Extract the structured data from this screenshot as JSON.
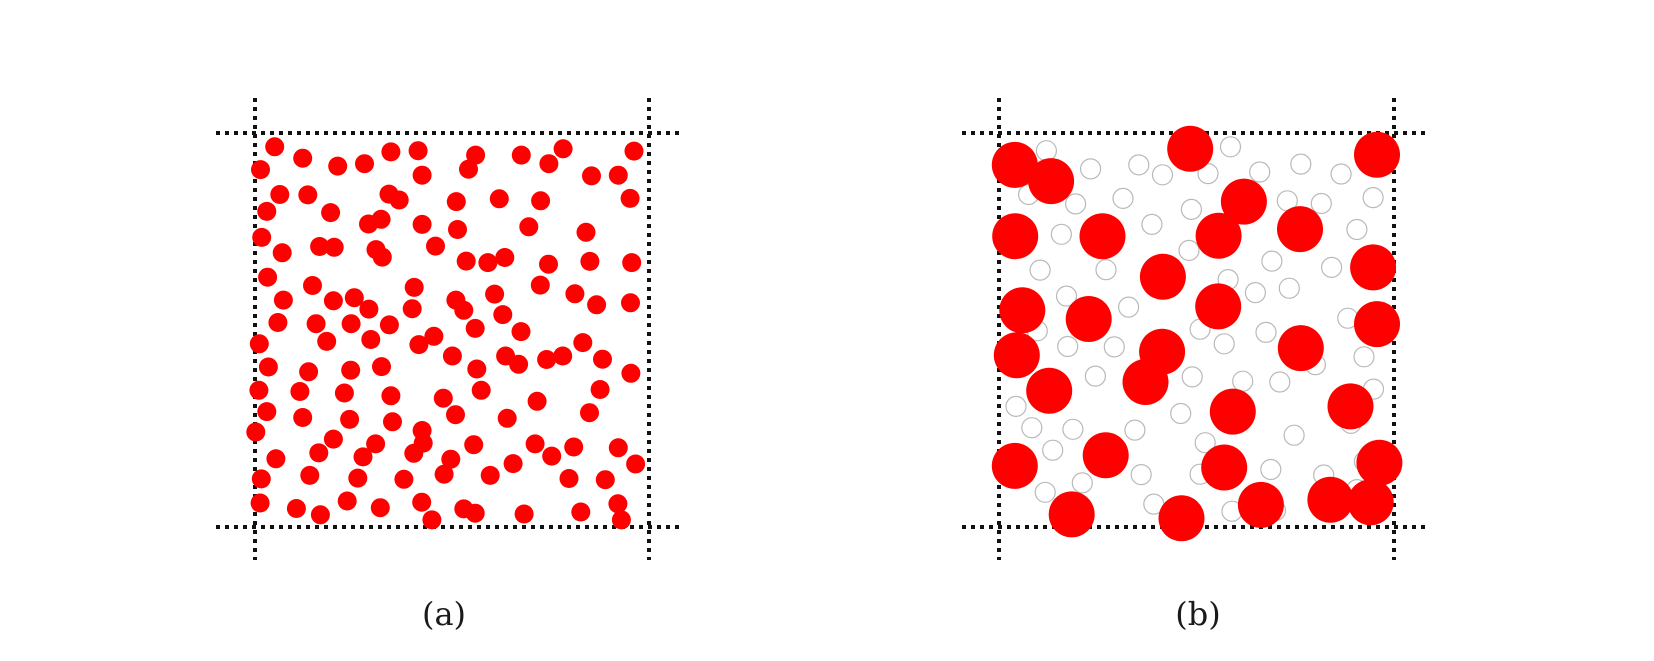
{
  "panels": [
    {
      "id": "a",
      "caption": "(a)",
      "particle_color": "#ff0000",
      "particles": [
        [
          0.05,
          0.035
        ],
        [
          0.121,
          0.064
        ],
        [
          0.345,
          0.048
        ],
        [
          0.414,
          0.045
        ],
        [
          0.56,
          0.056
        ],
        [
          0.676,
          0.056
        ],
        [
          0.782,
          0.04
        ],
        [
          0.962,
          0.046
        ],
        [
          0.014,
          0.093
        ],
        [
          0.21,
          0.084
        ],
        [
          0.278,
          0.078
        ],
        [
          0.424,
          0.107
        ],
        [
          0.542,
          0.092
        ],
        [
          0.746,
          0.078
        ],
        [
          0.854,
          0.109
        ],
        [
          0.922,
          0.107
        ],
        [
          0.063,
          0.156
        ],
        [
          0.134,
          0.157
        ],
        [
          0.34,
          0.155
        ],
        [
          0.366,
          0.17
        ],
        [
          0.511,
          0.174
        ],
        [
          0.62,
          0.167
        ],
        [
          0.725,
          0.172
        ],
        [
          0.952,
          0.166
        ],
        [
          0.03,
          0.199
        ],
        [
          0.192,
          0.202
        ],
        [
          0.288,
          0.231
        ],
        [
          0.32,
          0.219
        ],
        [
          0.424,
          0.232
        ],
        [
          0.514,
          0.245
        ],
        [
          0.695,
          0.238
        ],
        [
          0.84,
          0.252
        ],
        [
          0.017,
          0.265
        ],
        [
          0.201,
          0.29
        ],
        [
          0.323,
          0.315
        ],
        [
          0.536,
          0.325
        ],
        [
          0.634,
          0.316
        ],
        [
          0.85,
          0.326
        ],
        [
          0.956,
          0.329
        ],
        [
          0.069,
          0.304
        ],
        [
          0.164,
          0.288
        ],
        [
          0.307,
          0.296
        ],
        [
          0.458,
          0.287
        ],
        [
          0.591,
          0.329
        ],
        [
          0.745,
          0.333
        ],
        [
          0.032,
          0.366
        ],
        [
          0.146,
          0.387
        ],
        [
          0.252,
          0.418
        ],
        [
          0.404,
          0.392
        ],
        [
          0.51,
          0.424
        ],
        [
          0.608,
          0.409
        ],
        [
          0.724,
          0.386
        ],
        [
          0.867,
          0.436
        ],
        [
          0.072,
          0.424
        ],
        [
          0.199,
          0.426
        ],
        [
          0.289,
          0.447
        ],
        [
          0.399,
          0.446
        ],
        [
          0.53,
          0.45
        ],
        [
          0.629,
          0.461
        ],
        [
          0.812,
          0.408
        ],
        [
          0.953,
          0.431
        ],
        [
          0.058,
          0.481
        ],
        [
          0.155,
          0.484
        ],
        [
          0.244,
          0.484
        ],
        [
          0.341,
          0.487
        ],
        [
          0.454,
          0.516
        ],
        [
          0.559,
          0.496
        ],
        [
          0.675,
          0.504
        ],
        [
          0.832,
          0.532
        ],
        [
          0.011,
          0.535
        ],
        [
          0.182,
          0.529
        ],
        [
          0.294,
          0.524
        ],
        [
          0.416,
          0.537
        ],
        [
          0.501,
          0.566
        ],
        [
          0.636,
          0.566
        ],
        [
          0.74,
          0.575
        ],
        [
          0.882,
          0.574
        ],
        [
          0.034,
          0.594
        ],
        [
          0.136,
          0.606
        ],
        [
          0.243,
          0.602
        ],
        [
          0.321,
          0.593
        ],
        [
          0.563,
          0.599
        ],
        [
          0.669,
          0.587
        ],
        [
          0.781,
          0.566
        ],
        [
          0.954,
          0.61
        ],
        [
          0.01,
          0.653
        ],
        [
          0.114,
          0.656
        ],
        [
          0.227,
          0.66
        ],
        [
          0.345,
          0.667
        ],
        [
          0.478,
          0.673
        ],
        [
          0.574,
          0.653
        ],
        [
          0.716,
          0.681
        ],
        [
          0.876,
          0.651
        ],
        [
          0.03,
          0.707
        ],
        [
          0.121,
          0.722
        ],
        [
          0.24,
          0.727
        ],
        [
          0.349,
          0.733
        ],
        [
          0.424,
          0.755
        ],
        [
          0.509,
          0.715
        ],
        [
          0.64,
          0.724
        ],
        [
          0.849,
          0.71
        ],
        [
          0.002,
          0.759
        ],
        [
          0.199,
          0.777
        ],
        [
          0.306,
          0.789
        ],
        [
          0.427,
          0.787
        ],
        [
          0.555,
          0.791
        ],
        [
          0.711,
          0.789
        ],
        [
          0.809,
          0.797
        ],
        [
          0.922,
          0.799
        ],
        [
          0.053,
          0.827
        ],
        [
          0.162,
          0.812
        ],
        [
          0.274,
          0.822
        ],
        [
          0.403,
          0.813
        ],
        [
          0.497,
          0.828
        ],
        [
          0.655,
          0.839
        ],
        [
          0.753,
          0.82
        ],
        [
          0.966,
          0.84
        ],
        [
          0.016,
          0.878
        ],
        [
          0.139,
          0.869
        ],
        [
          0.261,
          0.876
        ],
        [
          0.378,
          0.879
        ],
        [
          0.48,
          0.866
        ],
        [
          0.597,
          0.869
        ],
        [
          0.797,
          0.877
        ],
        [
          0.889,
          0.88
        ],
        [
          0.013,
          0.939
        ],
        [
          0.105,
          0.953
        ],
        [
          0.234,
          0.934
        ],
        [
          0.318,
          0.951
        ],
        [
          0.423,
          0.937
        ],
        [
          0.53,
          0.954
        ],
        [
          0.683,
          0.967
        ],
        [
          0.921,
          0.941
        ],
        [
          0.166,
          0.969
        ],
        [
          0.449,
          0.982
        ],
        [
          0.559,
          0.965
        ],
        [
          0.827,
          0.962
        ],
        [
          0.93,
          0.982
        ]
      ]
    },
    {
      "id": "b",
      "caption": "(b)",
      "particle_color": "#ff0000",
      "ghost_color": "#b9b9b9",
      "big_particles": [
        [
          0.04,
          0.081
        ],
        [
          0.132,
          0.122
        ],
        [
          0.484,
          0.04
        ],
        [
          0.957,
          0.055
        ],
        [
          0.62,
          0.174
        ],
        [
          0.041,
          0.262
        ],
        [
          0.262,
          0.262
        ],
        [
          0.556,
          0.261
        ],
        [
          0.762,
          0.244
        ],
        [
          0.947,
          0.341
        ],
        [
          0.415,
          0.365
        ],
        [
          0.555,
          0.44
        ],
        [
          0.059,
          0.45
        ],
        [
          0.227,
          0.472
        ],
        [
          0.957,
          0.485
        ],
        [
          0.045,
          0.564
        ],
        [
          0.413,
          0.555
        ],
        [
          0.764,
          0.546
        ],
        [
          0.371,
          0.632
        ],
        [
          0.127,
          0.654
        ],
        [
          0.592,
          0.707
        ],
        [
          0.89,
          0.694
        ],
        [
          0.04,
          0.845
        ],
        [
          0.27,
          0.818
        ],
        [
          0.57,
          0.849
        ],
        [
          0.963,
          0.837
        ],
        [
          0.184,
          0.968
        ],
        [
          0.462,
          0.978
        ],
        [
          0.663,
          0.944
        ],
        [
          0.839,
          0.931
        ],
        [
          0.941,
          0.937
        ]
      ],
      "ghost_particles": [
        [
          0.12,
          0.045
        ],
        [
          0.586,
          0.035
        ],
        [
          0.764,
          0.079
        ],
        [
          0.232,
          0.091
        ],
        [
          0.354,
          0.081
        ],
        [
          0.414,
          0.106
        ],
        [
          0.529,
          0.103
        ],
        [
          0.66,
          0.099
        ],
        [
          0.866,
          0.104
        ],
        [
          0.947,
          0.164
        ],
        [
          0.075,
          0.156
        ],
        [
          0.194,
          0.18
        ],
        [
          0.314,
          0.166
        ],
        [
          0.487,
          0.194
        ],
        [
          0.73,
          0.172
        ],
        [
          0.816,
          0.179
        ],
        [
          0.158,
          0.257
        ],
        [
          0.387,
          0.232
        ],
        [
          0.481,
          0.298
        ],
        [
          0.906,
          0.245
        ],
        [
          0.691,
          0.325
        ],
        [
          0.104,
          0.348
        ],
        [
          0.271,
          0.347
        ],
        [
          0.58,
          0.372
        ],
        [
          0.842,
          0.341
        ],
        [
          0.171,
          0.414
        ],
        [
          0.328,
          0.442
        ],
        [
          0.649,
          0.405
        ],
        [
          0.735,
          0.394
        ],
        [
          0.509,
          0.498
        ],
        [
          0.883,
          0.47
        ],
        [
          0.097,
          0.502
        ],
        [
          0.174,
          0.542
        ],
        [
          0.292,
          0.543
        ],
        [
          0.57,
          0.535
        ],
        [
          0.676,
          0.506
        ],
        [
          0.924,
          0.568
        ],
        [
          0.244,
          0.617
        ],
        [
          0.489,
          0.619
        ],
        [
          0.617,
          0.63
        ],
        [
          0.711,
          0.632
        ],
        [
          0.801,
          0.588
        ],
        [
          0.948,
          0.65
        ],
        [
          0.043,
          0.694
        ],
        [
          0.187,
          0.752
        ],
        [
          0.344,
          0.754
        ],
        [
          0.46,
          0.712
        ],
        [
          0.522,
          0.786
        ],
        [
          0.747,
          0.767
        ],
        [
          0.891,
          0.737
        ],
        [
          0.083,
          0.748
        ],
        [
          0.136,
          0.805
        ],
        [
          0.36,
          0.867
        ],
        [
          0.509,
          0.866
        ],
        [
          0.688,
          0.854
        ],
        [
          0.822,
          0.868
        ],
        [
          0.925,
          0.834
        ],
        [
          0.117,
          0.912
        ],
        [
          0.211,
          0.888
        ],
        [
          0.392,
          0.942
        ],
        [
          0.59,
          0.96
        ],
        [
          0.7,
          0.958
        ],
        [
          0.906,
          0.905
        ]
      ]
    }
  ]
}
